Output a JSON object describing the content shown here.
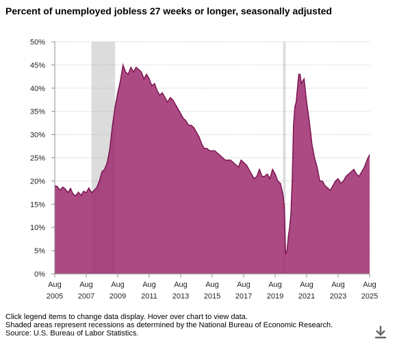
{
  "chart_data": {
    "type": "area",
    "title": "Percent of unemployed jobless 27 weeks or longer, seasonally adjusted",
    "xlabel": "",
    "ylabel": "",
    "x_range": [
      "2005-08",
      "2025-08"
    ],
    "ylim": [
      0,
      50
    ],
    "y_ticks": [
      "0%",
      "5%",
      "10%",
      "15%",
      "20%",
      "25%",
      "30%",
      "35%",
      "40%",
      "45%",
      "50%"
    ],
    "x_ticks": [
      {
        "month": "Aug",
        "year": "2005"
      },
      {
        "month": "Aug",
        "year": "2007"
      },
      {
        "month": "Aug",
        "year": "2009"
      },
      {
        "month": "Aug",
        "year": "2011"
      },
      {
        "month": "Aug",
        "year": "2013"
      },
      {
        "month": "Aug",
        "year": "2015"
      },
      {
        "month": "Aug",
        "year": "2017"
      },
      {
        "month": "Aug",
        "year": "2019"
      },
      {
        "month": "Aug",
        "year": "2021"
      },
      {
        "month": "Aug",
        "year": "2023"
      },
      {
        "month": "Aug",
        "year": "2025"
      }
    ],
    "grid": "horizontal dotted",
    "recessions": [
      {
        "start": "2007-12",
        "end": "2009-06"
      },
      {
        "start": "2020-02",
        "end": "2020-04"
      }
    ],
    "series": [
      {
        "color": "#9e2a6e",
        "points": [
          [
            "2005-08",
            19.0
          ],
          [
            "2005-10",
            18.8
          ],
          [
            "2005-12",
            18.0
          ],
          [
            "2006-02",
            18.7
          ],
          [
            "2006-04",
            18.3
          ],
          [
            "2006-06",
            17.5
          ],
          [
            "2006-08",
            18.4
          ],
          [
            "2006-10",
            17.2
          ],
          [
            "2006-12",
            16.8
          ],
          [
            "2007-02",
            17.6
          ],
          [
            "2007-04",
            16.9
          ],
          [
            "2007-06",
            17.8
          ],
          [
            "2007-08",
            17.5
          ],
          [
            "2007-10",
            18.5
          ],
          [
            "2007-12",
            17.5
          ],
          [
            "2008-02",
            18.0
          ],
          [
            "2008-04",
            18.6
          ],
          [
            "2008-06",
            20.0
          ],
          [
            "2008-08",
            22.0
          ],
          [
            "2008-10",
            22.5
          ],
          [
            "2008-12",
            24.0
          ],
          [
            "2009-02",
            27.0
          ],
          [
            "2009-04",
            32.0
          ],
          [
            "2009-06",
            36.0
          ],
          [
            "2009-08",
            39.0
          ],
          [
            "2009-10",
            41.5
          ],
          [
            "2009-12",
            45.0
          ],
          [
            "2010-02",
            43.5
          ],
          [
            "2010-04",
            43.0
          ],
          [
            "2010-06",
            44.5
          ],
          [
            "2010-08",
            43.5
          ],
          [
            "2010-10",
            44.5
          ],
          [
            "2010-12",
            44.0
          ],
          [
            "2011-02",
            43.5
          ],
          [
            "2011-04",
            42.0
          ],
          [
            "2011-06",
            43.0
          ],
          [
            "2011-08",
            42.0
          ],
          [
            "2011-10",
            40.5
          ],
          [
            "2011-12",
            41.0
          ],
          [
            "2012-02",
            39.5
          ],
          [
            "2012-04",
            38.5
          ],
          [
            "2012-06",
            39.0
          ],
          [
            "2012-08",
            38.0
          ],
          [
            "2012-10",
            37.0
          ],
          [
            "2012-12",
            38.0
          ],
          [
            "2013-02",
            37.5
          ],
          [
            "2013-04",
            36.5
          ],
          [
            "2013-06",
            35.5
          ],
          [
            "2013-08",
            34.5
          ],
          [
            "2013-10",
            33.5
          ],
          [
            "2013-12",
            33.0
          ],
          [
            "2014-02",
            32.0
          ],
          [
            "2014-04",
            32.0
          ],
          [
            "2014-06",
            31.5
          ],
          [
            "2014-08",
            30.5
          ],
          [
            "2014-10",
            29.5
          ],
          [
            "2014-12",
            28.0
          ],
          [
            "2015-02",
            27.0
          ],
          [
            "2015-04",
            27.0
          ],
          [
            "2015-06",
            26.5
          ],
          [
            "2015-08",
            26.5
          ],
          [
            "2015-10",
            26.5
          ],
          [
            "2015-12",
            26.0
          ],
          [
            "2016-02",
            25.5
          ],
          [
            "2016-04",
            25.0
          ],
          [
            "2016-06",
            24.5
          ],
          [
            "2016-08",
            24.5
          ],
          [
            "2016-10",
            24.5
          ],
          [
            "2016-12",
            24.0
          ],
          [
            "2017-02",
            23.5
          ],
          [
            "2017-04",
            23.0
          ],
          [
            "2017-06",
            24.5
          ],
          [
            "2017-08",
            24.0
          ],
          [
            "2017-10",
            23.5
          ],
          [
            "2017-12",
            22.5
          ],
          [
            "2018-02",
            21.5
          ],
          [
            "2018-04",
            20.5
          ],
          [
            "2018-06",
            21.0
          ],
          [
            "2018-08",
            22.5
          ],
          [
            "2018-10",
            21.0
          ],
          [
            "2018-12",
            21.0
          ],
          [
            "2019-02",
            21.5
          ],
          [
            "2019-04",
            20.5
          ],
          [
            "2019-06",
            22.5
          ],
          [
            "2019-08",
            21.5
          ],
          [
            "2019-10",
            20.0
          ],
          [
            "2019-12",
            19.5
          ],
          [
            "2020-02",
            17.0
          ],
          [
            "2020-03",
            14.5
          ],
          [
            "2020-04",
            4.2
          ],
          [
            "2020-05",
            5.0
          ],
          [
            "2020-06",
            8.0
          ],
          [
            "2020-07",
            10.0
          ],
          [
            "2020-08",
            13.0
          ],
          [
            "2020-09",
            20.0
          ],
          [
            "2020-10",
            32.0
          ],
          [
            "2020-11",
            36.0
          ],
          [
            "2020-12",
            37.0
          ],
          [
            "2021-01",
            40.0
          ],
          [
            "2021-02",
            43.0
          ],
          [
            "2021-03",
            43.0
          ],
          [
            "2021-04",
            41.0
          ],
          [
            "2021-06",
            42.0
          ],
          [
            "2021-08",
            37.0
          ],
          [
            "2021-10",
            33.0
          ],
          [
            "2021-12",
            28.0
          ],
          [
            "2022-02",
            25.0
          ],
          [
            "2022-04",
            23.0
          ],
          [
            "2022-06",
            20.0
          ],
          [
            "2022-08",
            20.0
          ],
          [
            "2022-10",
            19.0
          ],
          [
            "2022-12",
            18.5
          ],
          [
            "2023-02",
            18.0
          ],
          [
            "2023-04",
            19.0
          ],
          [
            "2023-06",
            20.0
          ],
          [
            "2023-08",
            20.5
          ],
          [
            "2023-10",
            19.5
          ],
          [
            "2023-12",
            20.0
          ],
          [
            "2024-02",
            21.0
          ],
          [
            "2024-04",
            21.5
          ],
          [
            "2024-06",
            22.0
          ],
          [
            "2024-08",
            22.5
          ],
          [
            "2024-10",
            21.5
          ],
          [
            "2024-12",
            21.0
          ],
          [
            "2025-02",
            22.0
          ],
          [
            "2025-04",
            23.0
          ],
          [
            "2025-06",
            24.5
          ],
          [
            "2025-08",
            25.7
          ]
        ]
      }
    ]
  },
  "notes": [
    "Click legend items to change data display. Hover over chart to view data.",
    "Shaded areas represent recessions as determined by the National Bureau of Economic Research.",
    "Source: U.S. Bureau of Labor Statistics."
  ],
  "download_icon": "download-arrow-icon"
}
